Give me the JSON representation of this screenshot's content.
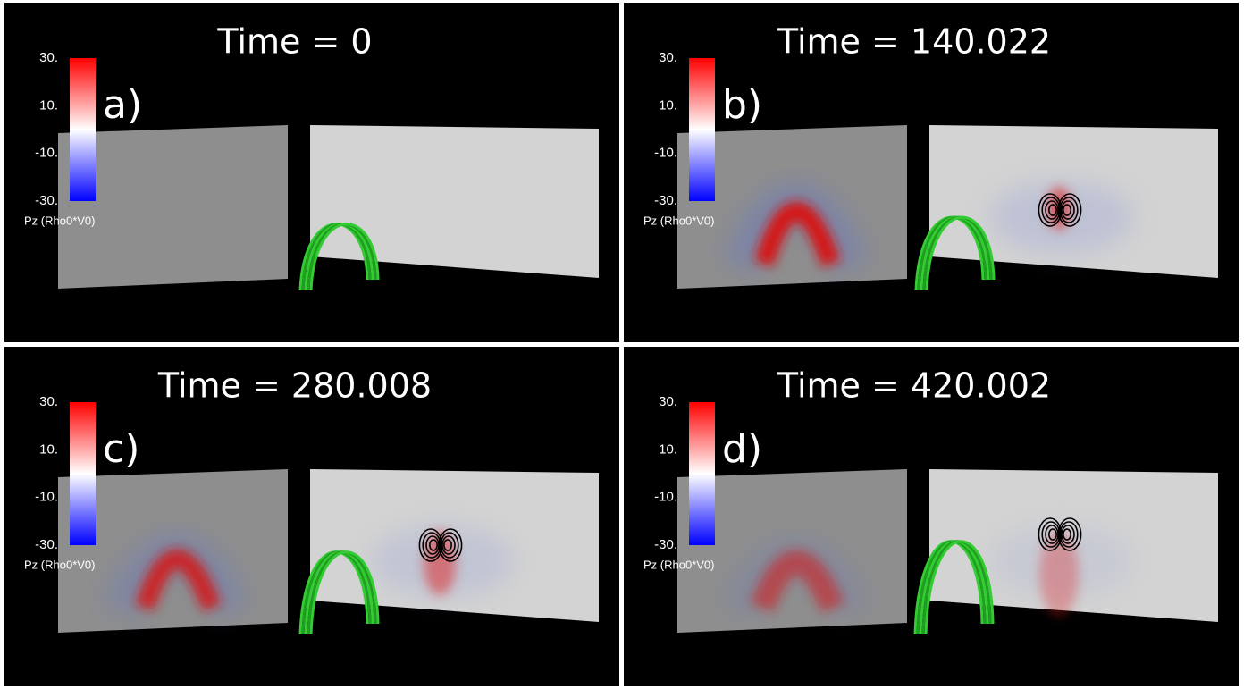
{
  "panels": [
    {
      "time_label": "Time = 0",
      "letter": "a)",
      "colorbar": {
        "ticks": [
          "30.",
          "10.",
          "-10.",
          "-30."
        ],
        "label": "Pz (Rho0*V0)"
      }
    },
    {
      "time_label": "Time = 140.022",
      "letter": "b)",
      "colorbar": {
        "ticks": [
          "30.",
          "10.",
          "-10.",
          "-30."
        ],
        "label": "Pz (Rho0*V0)"
      }
    },
    {
      "time_label": "Time = 280.008",
      "letter": "c)",
      "colorbar": {
        "ticks": [
          "30.",
          "10.",
          "-10.",
          "-30."
        ],
        "label": "Pz (Rho0*V0)"
      }
    },
    {
      "time_label": "Time = 420.002",
      "letter": "d)",
      "colorbar": {
        "ticks": [
          "30.",
          "10.",
          "-10.",
          "-30."
        ],
        "label": "Pz (Rho0*V0)"
      }
    }
  ]
}
